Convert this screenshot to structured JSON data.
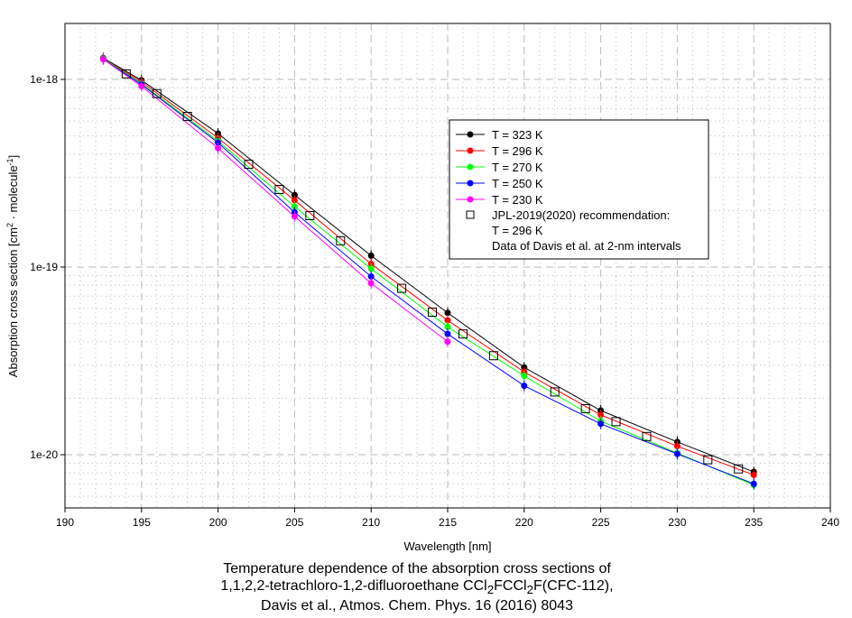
{
  "chart_data": {
    "type": "line",
    "xlabel": "Wavelength [nm]",
    "ylabel": "Absorption cross section [cm² · molecule⁻¹]",
    "ylabel_parts": [
      "Absorption cross section [cm",
      "2",
      " · molecule",
      "-1",
      "]"
    ],
    "xlim": [
      190,
      240
    ],
    "ylim": [
      5.2e-21,
      2e-18
    ],
    "yscale": "log",
    "xticks": [
      190,
      195,
      200,
      205,
      210,
      215,
      220,
      225,
      230,
      235,
      240
    ],
    "yticks": [
      {
        "v": 1e-18,
        "label": "1e-18"
      },
      {
        "v": 1e-19,
        "label": "1e-19"
      },
      {
        "v": 1e-20,
        "label": "1e-20"
      }
    ],
    "grid": true,
    "legend_placement": "upper-right-center",
    "series": [
      {
        "name": "T = 323 K",
        "color": "#000000",
        "x": [
          192.5,
          195,
          200,
          205,
          210,
          215,
          220,
          225,
          230,
          235
        ],
        "values": [
          1.3e-18,
          9.9e-19,
          5.15e-19,
          2.42e-19,
          1.15e-19,
          5.7e-20,
          2.92e-20,
          1.72e-20,
          1.17e-20,
          8.1e-21
        ]
      },
      {
        "name": "T = 296 K",
        "color": "#ff0000",
        "x": [
          192.5,
          195,
          200,
          205,
          210,
          215,
          220,
          225,
          230,
          235
        ],
        "values": [
          1.29e-18,
          9.7e-19,
          4.87e-19,
          2.27e-19,
          1.04e-19,
          5.2e-20,
          2.76e-20,
          1.63e-20,
          1.11e-20,
          7.8e-21
        ]
      },
      {
        "name": "T = 270 K",
        "color": "#00ff00",
        "x": [
          192.5,
          195,
          200,
          205,
          210,
          215,
          220,
          225,
          230,
          235
        ],
        "values": [
          1.29e-18,
          9.5e-19,
          4.7e-19,
          2.1e-19,
          9.8e-20,
          4.8e-20,
          2.63e-20,
          1.51e-20,
          1.02e-20,
          6.9e-21
        ]
      },
      {
        "name": "T = 250 K",
        "color": "#0000ff",
        "x": [
          192.5,
          195,
          200,
          205,
          210,
          215,
          220,
          225,
          230,
          235
        ],
        "values": [
          1.28e-18,
          9.4e-19,
          4.6e-19,
          1.96e-19,
          8.9e-20,
          4.4e-20,
          2.33e-20,
          1.46e-20,
          1.01e-20,
          7e-21
        ]
      },
      {
        "name": "T = 230 K",
        "color": "#ff00ff",
        "x": [
          192.5,
          195,
          200,
          205,
          210,
          215
        ],
        "values": [
          1.28e-18,
          9.2e-19,
          4.3e-19,
          1.86e-19,
          8.2e-20,
          4e-20
        ]
      }
    ],
    "reference": {
      "name": "JPL-2019(2020) recommendation:",
      "name_line2": "T = 296 K",
      "name_line3": "Data of Davis et al. at 2-nm intervals",
      "x": [
        194,
        196,
        198,
        202,
        204,
        206,
        208,
        212,
        214,
        216,
        218,
        222,
        224,
        226,
        228,
        232,
        234
      ],
      "values": [
        1.07e-18,
        8.4e-19,
        6.35e-19,
        3.53e-19,
        2.59e-19,
        1.88e-19,
        1.38e-19,
        7.7e-20,
        5.75e-20,
        4.4e-20,
        3.37e-20,
        2.16e-20,
        1.76e-20,
        1.5e-20,
        1.25e-20,
        9.4e-21,
        8.4e-21
      ]
    }
  },
  "caption": {
    "line1": "Temperature dependence of the absorption cross sections of",
    "line2_a": "1,1,2,2-tetrachloro-1,2-difluoroethane CCl",
    "line2_sub1": "2",
    "line2_b": "FCCl",
    "line2_sub2": "2",
    "line2_c": "F(CFC-112),",
    "line3": "Davis et al., Atmos. Chem. Phys. 16 (2016) 8043"
  }
}
